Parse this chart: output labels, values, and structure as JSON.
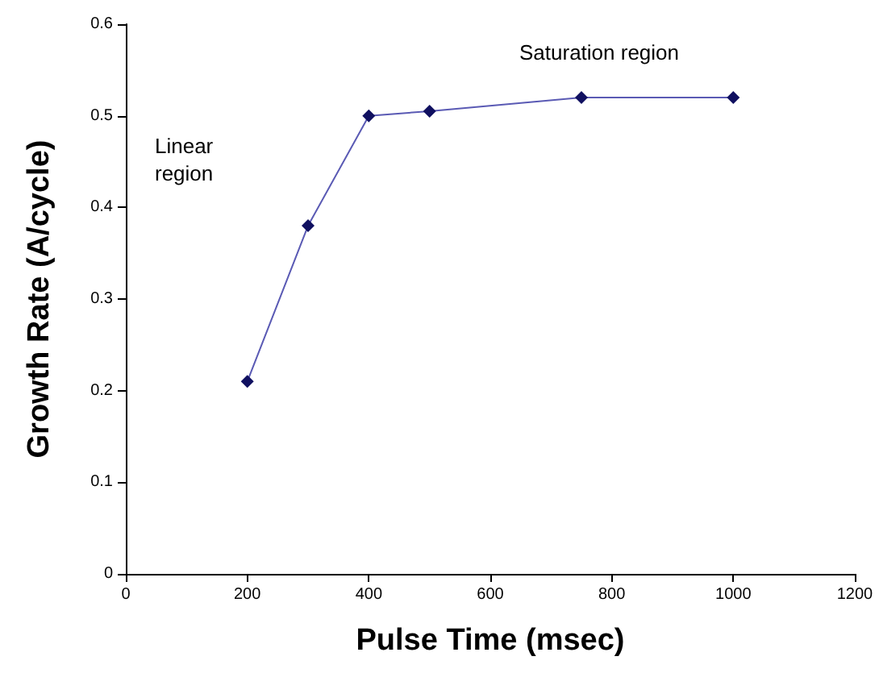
{
  "chart_data": {
    "type": "line",
    "xlabel": "Pulse Time (msec)",
    "ylabel": "Growth Rate (A/cycle)",
    "x": [
      200,
      300,
      400,
      500,
      750,
      1000
    ],
    "series": [
      {
        "color": "#5a5ab4",
        "values": [
          0.21,
          0.38,
          0.5,
          0.505,
          0.52,
          0.52
        ]
      }
    ],
    "xlim": [
      0,
      1200
    ],
    "xticks": [
      0,
      200,
      400,
      600,
      800,
      1000,
      1200
    ],
    "ylim": [
      0,
      0.6
    ],
    "yticks": [
      0,
      0.1,
      0.2,
      0.3,
      0.4,
      0.5,
      0.6
    ],
    "annotations": [
      "Linear region",
      "Saturation region"
    ],
    "marker": "diamond",
    "line_style": "solid"
  }
}
